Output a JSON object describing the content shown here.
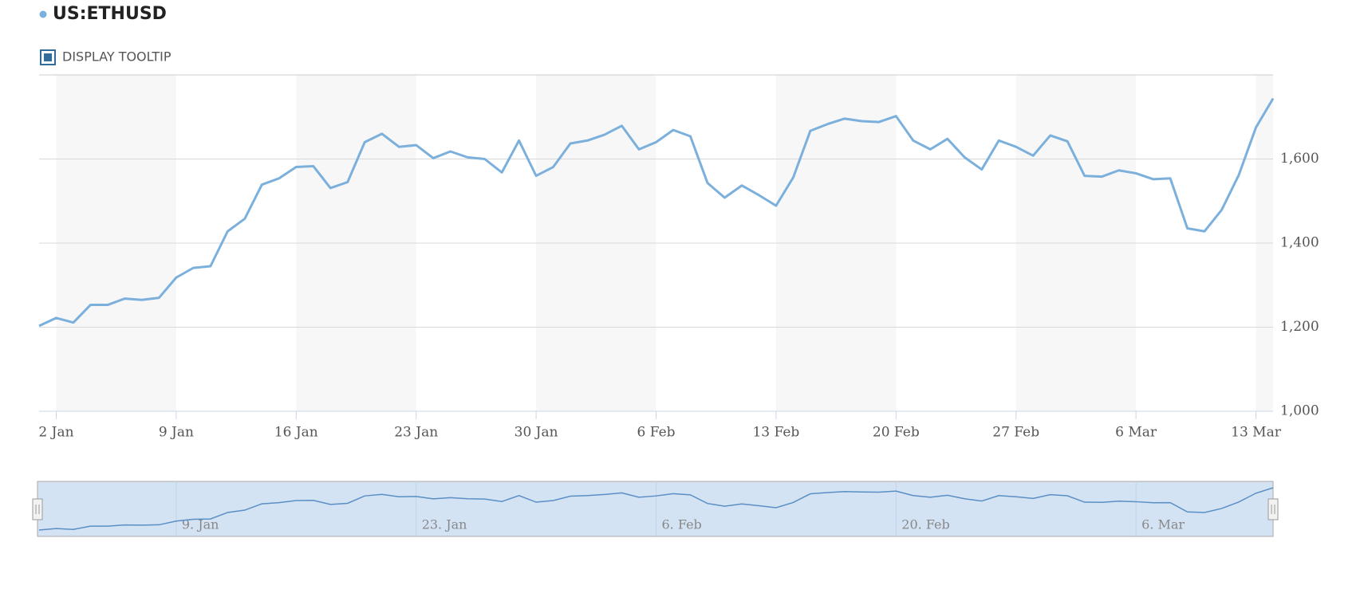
{
  "chart_data": {
    "type": "line",
    "series": [
      {
        "name": "US:ETHUSD",
        "color": "#7cb0dc",
        "values": [
          1203,
          1222,
          1211,
          1253,
          1253,
          1268,
          1265,
          1270,
          1318,
          1341,
          1345,
          1428,
          1458,
          1539,
          1554,
          1581,
          1583,
          1531,
          1545,
          1640,
          1660,
          1629,
          1633,
          1602,
          1618,
          1604,
          1600,
          1568,
          1644,
          1560,
          1581,
          1637,
          1644,
          1658,
          1679,
          1623,
          1640,
          1669,
          1654,
          1543,
          1508,
          1537,
          1514,
          1489,
          1556,
          1667,
          1683,
          1696,
          1690,
          1688,
          1702,
          1644,
          1623,
          1648,
          1604,
          1575,
          1644,
          1629,
          1608,
          1656,
          1642,
          1560,
          1558,
          1573,
          1566,
          1552,
          1554,
          1435,
          1428,
          1479,
          1562,
          1675,
          1744
        ]
      }
    ],
    "x": [
      1,
      2,
      3,
      4,
      5,
      6,
      7,
      8,
      9,
      10,
      11,
      12,
      13,
      14,
      15,
      16,
      17,
      18,
      19,
      20,
      21,
      22,
      23,
      24,
      25,
      26,
      27,
      28,
      29,
      30,
      31,
      32,
      33,
      34,
      35,
      36,
      37,
      38,
      39,
      40,
      41,
      42,
      43,
      44,
      45,
      46,
      47,
      48,
      49,
      50,
      51,
      52,
      53,
      54,
      55,
      56,
      57,
      58,
      59,
      60,
      61,
      62,
      63,
      64,
      65,
      66,
      67,
      68,
      69,
      70,
      71,
      72,
      73
    ],
    "xlim": [
      1,
      73
    ],
    "xticks": [
      {
        "value": 2,
        "label": "2 Jan"
      },
      {
        "value": 9,
        "label": "9 Jan"
      },
      {
        "value": 16,
        "label": "16 Jan"
      },
      {
        "value": 23,
        "label": "23 Jan"
      },
      {
        "value": 30,
        "label": "30 Jan"
      },
      {
        "value": 37,
        "label": "6 Feb"
      },
      {
        "value": 44,
        "label": "13 Feb"
      },
      {
        "value": 51,
        "label": "20 Feb"
      },
      {
        "value": 58,
        "label": "27 Feb"
      },
      {
        "value": 65,
        "label": "6 Mar"
      },
      {
        "value": 72,
        "label": "13 Mar"
      }
    ],
    "ylim": [
      1000,
      1800
    ],
    "yticks": [
      {
        "value": 1000,
        "label": "1,000"
      },
      {
        "value": 1200,
        "label": "1,200"
      },
      {
        "value": 1400,
        "label": "1,400"
      },
      {
        "value": 1600,
        "label": "1,600"
      }
    ],
    "grid": true,
    "bands": true,
    "tooltip": {
      "label": "DISPLAY TOOLTIP",
      "checked": true
    },
    "navigator": {
      "xticks": [
        {
          "value": 9,
          "label": "9. Jan"
        },
        {
          "value": 23,
          "label": "23. Jan"
        },
        {
          "value": 37,
          "label": "6. Feb"
        },
        {
          "value": 51,
          "label": "20. Feb"
        },
        {
          "value": 65,
          "label": "6. Mar"
        }
      ]
    }
  }
}
